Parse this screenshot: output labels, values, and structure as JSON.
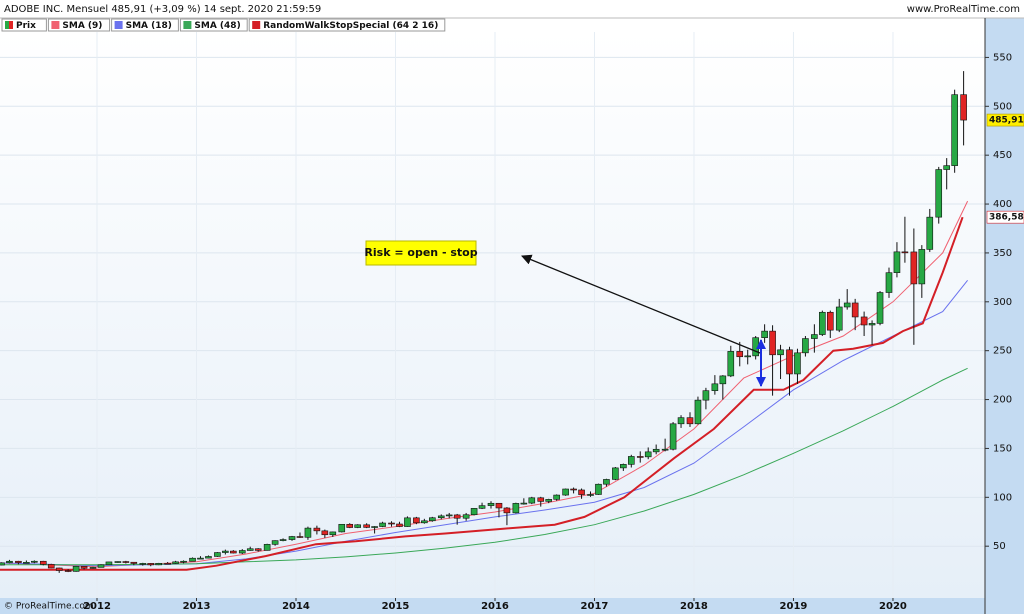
{
  "chart_data": {
    "type": "candlestick",
    "title": "ADOBE INC. Mensuel 485,91 (+3,09 %) 14 sept. 2020 21:59:59",
    "source": "www.ProRealTime.com",
    "footer": "© ProRealTime.com",
    "annotation": "Risk = open - stop",
    "xlim": [
      2011.025,
      2020.925
    ],
    "xticks": [
      2012,
      2013,
      2014,
      2015,
      2016,
      2017,
      2018,
      2019,
      2020
    ],
    "ylim": [
      -3,
      576
    ],
    "yticks": [
      50,
      100,
      150,
      200,
      250,
      300,
      350,
      400,
      450,
      500,
      550
    ],
    "grid": true,
    "price_label": {
      "value": 485.91,
      "label": "485,91"
    },
    "stop_label": {
      "value": 386.58,
      "label": "386,58"
    },
    "series": [
      {
        "name": "Prix",
        "type": "candlestick",
        "up_color": "#27a844",
        "down_color": "#e02424",
        "x": [
          2011.04,
          2011.12,
          2011.21,
          2011.29,
          2011.37,
          2011.46,
          2011.54,
          2011.62,
          2011.71,
          2011.79,
          2011.87,
          2011.96,
          2012.04,
          2012.12,
          2012.21,
          2012.29,
          2012.37,
          2012.46,
          2012.54,
          2012.62,
          2012.71,
          2012.79,
          2012.87,
          2012.96,
          2013.04,
          2013.12,
          2013.21,
          2013.29,
          2013.37,
          2013.46,
          2013.54,
          2013.62,
          2013.71,
          2013.79,
          2013.87,
          2013.96,
          2014.04,
          2014.12,
          2014.21,
          2014.29,
          2014.37,
          2014.46,
          2014.54,
          2014.62,
          2014.71,
          2014.79,
          2014.87,
          2014.96,
          2015.04,
          2015.12,
          2015.21,
          2015.29,
          2015.37,
          2015.46,
          2015.54,
          2015.62,
          2015.71,
          2015.79,
          2015.87,
          2015.96,
          2016.04,
          2016.12,
          2016.21,
          2016.29,
          2016.37,
          2016.46,
          2016.54,
          2016.62,
          2016.71,
          2016.79,
          2016.87,
          2016.96,
          2017.04,
          2017.12,
          2017.21,
          2017.29,
          2017.37,
          2017.46,
          2017.54,
          2017.62,
          2017.71,
          2017.79,
          2017.87,
          2017.96,
          2018.04,
          2018.12,
          2018.21,
          2018.29,
          2018.37,
          2018.46,
          2018.54,
          2018.62,
          2018.71,
          2018.79,
          2018.87,
          2018.96,
          2019.04,
          2019.12,
          2019.21,
          2019.29,
          2019.37,
          2019.46,
          2019.54,
          2019.62,
          2019.71,
          2019.79,
          2019.87,
          2019.96,
          2020.04,
          2020.12,
          2020.21,
          2020.29,
          2020.37,
          2020.46,
          2020.54,
          2020.62,
          2020.71
        ],
        "ohlc": [
          [
            30.7,
            33.5,
            30.5,
            33
          ],
          [
            33,
            36,
            32.5,
            34.6
          ],
          [
            34.6,
            35,
            31.5,
            33.2
          ],
          [
            33.2,
            35.4,
            32.5,
            33.5
          ],
          [
            33.5,
            35.5,
            32.6,
            34.6
          ],
          [
            34.6,
            35,
            30.4,
            31.4
          ],
          [
            31.4,
            32,
            27.5,
            27.7
          ],
          [
            27.7,
            28,
            22.7,
            25.1
          ],
          [
            25.1,
            26.5,
            23.5,
            24.2
          ],
          [
            24.2,
            29.8,
            23.9,
            29.4
          ],
          [
            29.4,
            29.5,
            26.2,
            27.5
          ],
          [
            27.5,
            28.9,
            27,
            28.3
          ],
          [
            28.3,
            31.5,
            28.2,
            31
          ],
          [
            31,
            34,
            30.8,
            33.9
          ],
          [
            33.9,
            34.5,
            33,
            34.3
          ],
          [
            34.3,
            35,
            32.3,
            33.6
          ],
          [
            33.6,
            33.8,
            30.5,
            32.3
          ],
          [
            32.3,
            33,
            30.1,
            32.4
          ],
          [
            32.4,
            32.8,
            29.5,
            30.9
          ],
          [
            30.9,
            32.9,
            30.6,
            32.5
          ],
          [
            32.5,
            33.8,
            31.5,
            32.4
          ],
          [
            32.4,
            35,
            32,
            34
          ],
          [
            34,
            35.5,
            32.5,
            34.6
          ],
          [
            34.6,
            38.5,
            34.5,
            37.7
          ],
          [
            37.7,
            39.8,
            37,
            37.8
          ],
          [
            37.8,
            40.5,
            37.5,
            39.5
          ],
          [
            39.5,
            44,
            39,
            43.5
          ],
          [
            43.5,
            46.5,
            41.5,
            45
          ],
          [
            45,
            46,
            42.5,
            43
          ],
          [
            43,
            47,
            42,
            45.6
          ],
          [
            45.6,
            49.5,
            45.3,
            47.4
          ],
          [
            47.4,
            48,
            44.5,
            45.7
          ],
          [
            45.7,
            52.5,
            45.5,
            51.9
          ],
          [
            51.9,
            56,
            50.5,
            55.7
          ],
          [
            55.7,
            58,
            55,
            56.8
          ],
          [
            56.8,
            60.5,
            55.5,
            59.9
          ],
          [
            59.9,
            64,
            58.5,
            59.1
          ],
          [
            59.1,
            70,
            56.5,
            68.5
          ],
          [
            68.5,
            71,
            62,
            65.7
          ],
          [
            65.7,
            67,
            58.5,
            61.7
          ],
          [
            61.7,
            65,
            59.5,
            64.6
          ],
          [
            64.6,
            72.5,
            64,
            72.4
          ],
          [
            72.4,
            73.5,
            68.5,
            69.1
          ],
          [
            69.1,
            72.5,
            68.5,
            71.9
          ],
          [
            71.9,
            73.5,
            68.5,
            69.2
          ],
          [
            69.2,
            70.5,
            63,
            70.1
          ],
          [
            70.1,
            75,
            69.5,
            73.7
          ],
          [
            73.7,
            75.5,
            70,
            72.7
          ],
          [
            72.7,
            75,
            69.5,
            70.1
          ],
          [
            70.1,
            80.5,
            69.8,
            79
          ],
          [
            79,
            80,
            72.5,
            73.9
          ],
          [
            73.9,
            78,
            73,
            76
          ],
          [
            76,
            80,
            75,
            79.1
          ],
          [
            79.1,
            82.5,
            77.5,
            81
          ],
          [
            81,
            84,
            78.5,
            82
          ],
          [
            82,
            83,
            72,
            78.6
          ],
          [
            78.6,
            84,
            76,
            82.2
          ],
          [
            82.2,
            89,
            81.5,
            88.7
          ],
          [
            88.7,
            94.5,
            88,
            91.5
          ],
          [
            91.5,
            96,
            88.5,
            93.9
          ],
          [
            93.9,
            94,
            79.5,
            89.1
          ],
          [
            89.1,
            90,
            71.5,
            84.1
          ],
          [
            84.1,
            94.5,
            83.5,
            93.8
          ],
          [
            93.8,
            99,
            92.5,
            94.1
          ],
          [
            94.1,
            100.5,
            93,
            99.5
          ],
          [
            99.5,
            100.5,
            90.5,
            95.8
          ],
          [
            95.8,
            98.5,
            94,
            97.9
          ],
          [
            97.9,
            103,
            96.5,
            102.3
          ],
          [
            102.3,
            109,
            101.5,
            108.5
          ],
          [
            108.5,
            110,
            104,
            107.5
          ],
          [
            107.5,
            109,
            98.5,
            102.8
          ],
          [
            102.8,
            106,
            100.5,
            102.9
          ],
          [
            102.9,
            114,
            102.5,
            113.4
          ],
          [
            113.4,
            119,
            111,
            118.3
          ],
          [
            118.3,
            131,
            117.5,
            130.1
          ],
          [
            130.1,
            134.5,
            127,
            133.7
          ],
          [
            133.7,
            143.5,
            130.5,
            141.8
          ],
          [
            141.8,
            147,
            135.5,
            141.4
          ],
          [
            141.4,
            151,
            139,
            146.5
          ],
          [
            146.5,
            154,
            144,
            149.1
          ],
          [
            149.1,
            160,
            147,
            149.2
          ],
          [
            149.2,
            177,
            148,
            175.2
          ],
          [
            175.2,
            184,
            171,
            181.5
          ],
          [
            181.5,
            187,
            172,
            175.2
          ],
          [
            175.2,
            203,
            174.5,
            199.4
          ],
          [
            199.4,
            212,
            190,
            209.1
          ],
          [
            209.1,
            225,
            205,
            216.1
          ],
          [
            216.1,
            225,
            200,
            224.2
          ],
          [
            224.2,
            255,
            223,
            249.3
          ],
          [
            249.3,
            259,
            234,
            243.8
          ],
          [
            243.8,
            251,
            236,
            244.7
          ],
          [
            244.7,
            265,
            241,
            263.3
          ],
          [
            263.3,
            277,
            258,
            270
          ],
          [
            270,
            276,
            204,
            245.8
          ],
          [
            245.8,
            256,
            221,
            250.9
          ],
          [
            250.9,
            254,
            204,
            226.2
          ],
          [
            226.2,
            252,
            216,
            247.8
          ],
          [
            247.8,
            265,
            244,
            262.4
          ],
          [
            262.4,
            277,
            248,
            266.5
          ],
          [
            266.5,
            291,
            265,
            289.3
          ],
          [
            289.3,
            291,
            263,
            271
          ],
          [
            271,
            303,
            269,
            294.7
          ],
          [
            294.7,
            313,
            292,
            298.8
          ],
          [
            298.8,
            303,
            271,
            284.5
          ],
          [
            284.5,
            290,
            265,
            276.3
          ],
          [
            276.3,
            281,
            256,
            277.9
          ],
          [
            277.9,
            311,
            276,
            309.5
          ],
          [
            309.5,
            335,
            304,
            329.8
          ],
          [
            329.8,
            361,
            325,
            351.1
          ],
          [
            351.1,
            387,
            340,
            351
          ],
          [
            351,
            375,
            256,
            318.3
          ],
          [
            318.3,
            358,
            304,
            353.6
          ],
          [
            353.6,
            395,
            351,
            386.6
          ],
          [
            386.6,
            438,
            380,
            435.3
          ],
          [
            435.3,
            447,
            415,
            439.3
          ],
          [
            439.3,
            517,
            432,
            511.9
          ],
          [
            511.9,
            536,
            460,
            485.91
          ]
        ]
      },
      {
        "name": "SMA (9)",
        "type": "line",
        "color": "#f06070",
        "width": 1,
        "x": [
          2011.0,
          2012.0,
          2013.0,
          2013.5,
          2014.0,
          2014.5,
          2015.0,
          2015.5,
          2016.0,
          2016.5,
          2017.0,
          2017.5,
          2018.0,
          2018.5,
          2019.0,
          2019.5,
          2020.0,
          2020.5,
          2020.75
        ],
        "values": [
          33,
          29,
          34,
          42,
          52,
          63,
          70,
          78,
          85,
          94,
          104,
          133,
          170,
          222,
          245,
          265,
          300,
          350,
          403
        ]
      },
      {
        "name": "SMA (18)",
        "type": "line",
        "color": "#6a72ee",
        "width": 1,
        "x": [
          2011.0,
          2012.0,
          2013.0,
          2013.5,
          2014.0,
          2014.5,
          2015.0,
          2015.5,
          2016.0,
          2016.5,
          2017.0,
          2017.5,
          2018.0,
          2018.5,
          2019.0,
          2019.5,
          2020.0,
          2020.5,
          2020.75
        ],
        "values": [
          33,
          30,
          32,
          37,
          45,
          55,
          64,
          72,
          80,
          87,
          95,
          110,
          135,
          172,
          210,
          240,
          265,
          290,
          322
        ]
      },
      {
        "name": "SMA (48)",
        "type": "line",
        "color": "#3aa858",
        "width": 1,
        "x": [
          2011.0,
          2012.0,
          2013.0,
          2013.5,
          2014.0,
          2014.5,
          2015.0,
          2015.5,
          2016.0,
          2016.5,
          2017.0,
          2017.5,
          2018.0,
          2018.5,
          2019.0,
          2019.5,
          2020.0,
          2020.5,
          2020.75
        ],
        "values": [
          31,
          31,
          32,
          34,
          36,
          39,
          43,
          48,
          54,
          62,
          72,
          86,
          103,
          123,
          145,
          168,
          193,
          220,
          232
        ]
      },
      {
        "name": "RandomWalkStopSpecial (64 2 16)",
        "type": "line",
        "color": "#d41f26",
        "width": 2,
        "x": [
          2011.0,
          2012.0,
          2012.9,
          2013.2,
          2013.7,
          2014.2,
          2014.6,
          2015.1,
          2015.5,
          2016.1,
          2016.6,
          2016.9,
          2017.3,
          2017.8,
          2018.2,
          2018.6,
          2018.9,
          2019.1,
          2019.4,
          2019.6,
          2019.9,
          2020.1,
          2020.3,
          2020.5,
          2020.7
        ],
        "values": [
          26,
          26,
          26,
          30,
          40,
          52,
          55,
          60,
          63,
          68,
          72,
          80,
          100,
          140,
          170,
          210,
          210,
          220,
          250,
          252,
          258,
          270,
          278,
          330,
          386.58
        ]
      }
    ]
  }
}
